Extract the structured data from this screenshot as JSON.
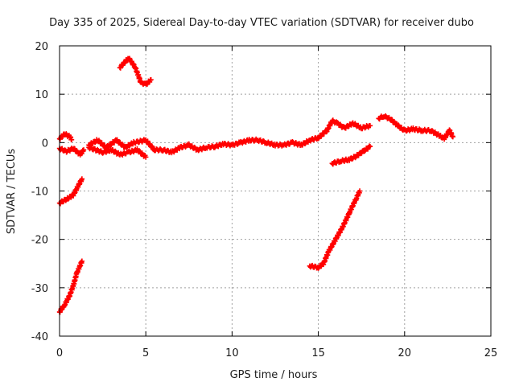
{
  "chart_data": {
    "type": "scatter",
    "title": "Day 335 of 2025, Sidereal Day-to-day VTEC variation (SDTVAR) for receiver dubo",
    "xlabel": "GPS time / hours",
    "ylabel": "SDTVAR / TECUs",
    "xlim": [
      0,
      25
    ],
    "ylim": [
      -40,
      20
    ],
    "xticks": [
      0,
      5,
      10,
      15,
      20,
      25
    ],
    "yticks": [
      -40,
      -30,
      -20,
      -10,
      0,
      10,
      20
    ],
    "grid": true,
    "marker": "plus",
    "series_color": "#ff0000",
    "series": [
      {
        "name": "upper arc A",
        "x": [
          0.0,
          0.3,
          0.6,
          0.7
        ],
        "y": [
          0.8,
          1.8,
          1.2,
          0.6
        ]
      },
      {
        "name": "upper arc B",
        "x": [
          0.0,
          0.4,
          0.8,
          1.2,
          1.4
        ],
        "y": [
          -1.2,
          -1.8,
          -1.2,
          -2.5,
          -1.5
        ]
      },
      {
        "name": "lower track",
        "x": [
          0.0,
          0.5,
          0.8,
          1.0,
          1.3
        ],
        "y": [
          -12.5,
          -11.5,
          -10.8,
          -9.5,
          -7.5
        ]
      },
      {
        "name": "bottom track",
        "x": [
          0.0,
          0.3,
          0.6,
          0.8,
          1.0,
          1.3
        ],
        "y": [
          -35.0,
          -33.5,
          -31.5,
          -29.5,
          -27.0,
          -24.5
        ]
      },
      {
        "name": "peak arc",
        "x": [
          3.5,
          4.0,
          4.4,
          4.7,
          5.0,
          5.3
        ],
        "y": [
          15.5,
          17.5,
          15.5,
          12.5,
          12.0,
          13.0
        ]
      },
      {
        "name": "main band",
        "x": [
          1.7,
          2.2,
          2.7,
          3.3,
          3.8,
          4.3,
          5.0,
          5.5,
          6.0,
          6.5,
          7.0,
          7.5,
          8.0,
          8.5,
          9.0,
          9.5,
          10.0,
          10.5,
          11.0,
          11.5,
          12.0,
          12.5,
          13.0,
          13.5,
          14.0,
          14.5,
          15.0,
          15.5,
          15.8,
          16.1,
          16.5,
          17.0,
          17.5,
          18.0
        ],
        "y": [
          -0.5,
          0.5,
          -1.0,
          0.5,
          -1.0,
          0.0,
          0.5,
          -1.5,
          -1.5,
          -2.0,
          -1.0,
          -0.5,
          -1.5,
          -1.0,
          -0.8,
          -0.3,
          -0.5,
          0.0,
          0.5,
          0.5,
          0.0,
          -0.5,
          -0.5,
          0.0,
          -0.5,
          0.5,
          1.0,
          2.5,
          4.5,
          4.0,
          3.0,
          4.0,
          3.0,
          3.5
        ]
      },
      {
        "name": "main band lower",
        "x": [
          1.7,
          2.5,
          3.0,
          3.5,
          4.0,
          4.5,
          5.0
        ],
        "y": [
          -1.0,
          -2.0,
          -1.5,
          -2.5,
          -2.0,
          -1.5,
          -3.0
        ]
      },
      {
        "name": "right band",
        "x": [
          18.5,
          18.8,
          19.2,
          19.6,
          20.0,
          20.5,
          21.0,
          21.5,
          22.0,
          22.3,
          22.6,
          22.8
        ],
        "y": [
          5.0,
          5.5,
          4.8,
          3.5,
          2.5,
          2.8,
          2.5,
          2.5,
          1.5,
          0.8,
          2.5,
          1.2
        ]
      },
      {
        "name": "rising track",
        "x": [
          14.5,
          15.0,
          15.3,
          15.6,
          16.0,
          16.4,
          16.8,
          17.2,
          17.4
        ],
        "y": [
          -25.5,
          -25.8,
          -25.0,
          -22.5,
          -20.0,
          -17.5,
          -14.5,
          -11.5,
          -10.0
        ]
      },
      {
        "name": "mid track",
        "x": [
          15.8,
          16.3,
          16.8,
          17.2,
          17.6,
          18.0
        ],
        "y": [
          -4.3,
          -3.8,
          -3.5,
          -2.8,
          -1.8,
          -0.8
        ]
      }
    ]
  }
}
